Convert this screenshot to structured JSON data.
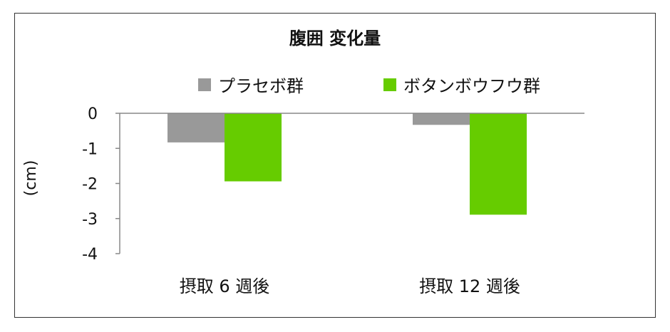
{
  "chart_data": {
    "type": "bar",
    "title": "腹囲  変化量",
    "ylabel": "(cm)",
    "xlabel": "",
    "categories": [
      "摂取 6 週後",
      "摂取 12 週後"
    ],
    "series": [
      {
        "name": "プラセボ群",
        "color": "#999999",
        "values": [
          -0.83,
          -0.33
        ]
      },
      {
        "name": "ボタンボウフウ群",
        "color": "#66cc00",
        "values": [
          -1.94,
          -2.89
        ]
      }
    ],
    "ylim": [
      -4,
      0
    ],
    "yticks": [
      "0",
      "-1",
      "-2",
      "-3",
      "-4"
    ],
    "grid": false,
    "legend": "top"
  }
}
